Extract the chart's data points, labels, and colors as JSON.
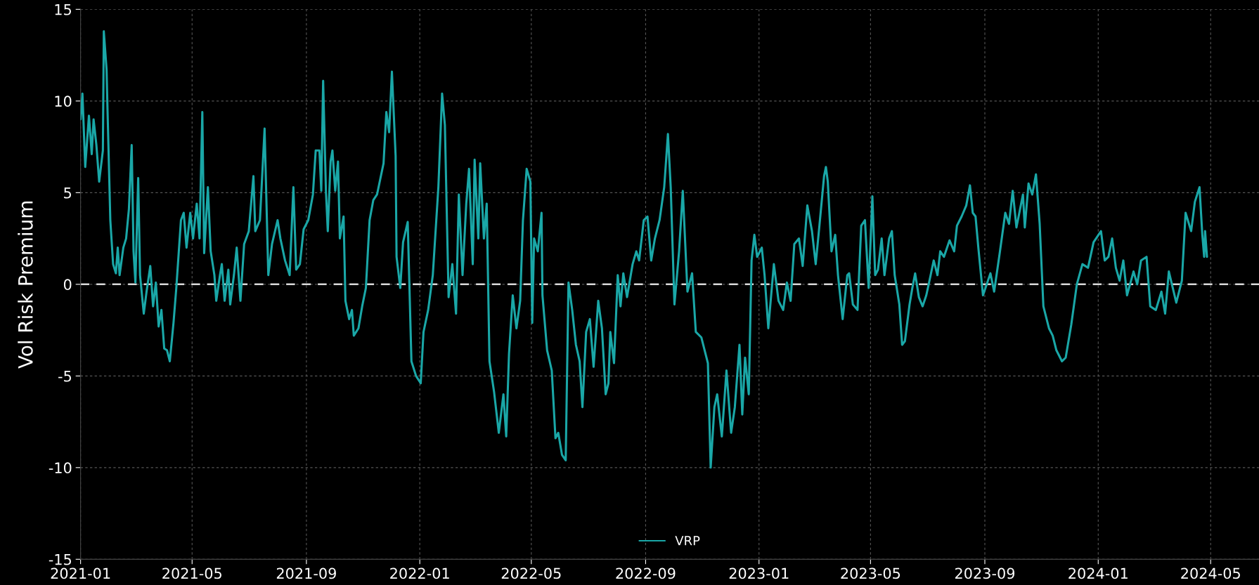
{
  "chart_data": {
    "type": "line",
    "ylabel": "Vol Risk Premium",
    "grid": true,
    "legend": "bottom",
    "marker": "none",
    "line_style": "solid",
    "xlim": [
      "2021-01-01",
      "2024-06-22"
    ],
    "xticks": [
      {
        "value": "2021-01-01",
        "label": "2021-01"
      },
      {
        "value": "2021-05-01",
        "label": "2021-05"
      },
      {
        "value": "2021-09-01",
        "label": "2021-09"
      },
      {
        "value": "2022-01-01",
        "label": "2022-01"
      },
      {
        "value": "2022-05-01",
        "label": "2022-05"
      },
      {
        "value": "2022-09-01",
        "label": "2022-09"
      },
      {
        "value": "2023-01-01",
        "label": "2023-01"
      },
      {
        "value": "2023-05-01",
        "label": "2023-05"
      },
      {
        "value": "2023-09-01",
        "label": "2023-09"
      },
      {
        "value": "2024-01-01",
        "label": "2024-01"
      },
      {
        "value": "2024-05-01",
        "label": "2024-05"
      }
    ],
    "ylim": [
      -15,
      15
    ],
    "yticks": [
      -15,
      -10,
      -5,
      0,
      5,
      10,
      15
    ],
    "ref_lines": [
      {
        "axis": "y",
        "value": 0,
        "label": null,
        "color": "#d9d9d9",
        "line_style": "dashed"
      }
    ],
    "series": [
      {
        "name": "VRP",
        "color": "#1aa7a7",
        "x": [
          "2021-01-01",
          "2021-01-03",
          "2021-01-06",
          "2021-01-10",
          "2021-01-13",
          "2021-01-15",
          "2021-01-18",
          "2021-01-21",
          "2021-01-25",
          "2021-01-26",
          "2021-01-29",
          "2021-01-30",
          "2021-02-02",
          "2021-02-05",
          "2021-02-08",
          "2021-02-10",
          "2021-02-12",
          "2021-02-16",
          "2021-02-19",
          "2021-02-22",
          "2021-02-25",
          "2021-02-27",
          "2021-03-01",
          "2021-03-04",
          "2021-03-06",
          "2021-03-10",
          "2021-03-13",
          "2021-03-17",
          "2021-03-20",
          "2021-03-23",
          "2021-03-26",
          "2021-03-29",
          "2021-04-01",
          "2021-04-04",
          "2021-04-07",
          "2021-04-11",
          "2021-04-14",
          "2021-04-19",
          "2021-04-22",
          "2021-04-25",
          "2021-04-29",
          "2021-05-02",
          "2021-05-06",
          "2021-05-09",
          "2021-05-12",
          "2021-05-14",
          "2021-05-18",
          "2021-05-21",
          "2021-05-25",
          "2021-05-27",
          "2021-05-31",
          "2021-06-02",
          "2021-06-05",
          "2021-06-09",
          "2021-06-11",
          "2021-06-15",
          "2021-06-18",
          "2021-06-22",
          "2021-06-26",
          "2021-07-01",
          "2021-07-06",
          "2021-07-08",
          "2021-07-13",
          "2021-07-18",
          "2021-07-22",
          "2021-07-26",
          "2021-08-01",
          "2021-08-04",
          "2021-08-09",
          "2021-08-14",
          "2021-08-18",
          "2021-08-21",
          "2021-08-25",
          "2021-08-29",
          "2021-09-03",
          "2021-09-08",
          "2021-09-11",
          "2021-09-15",
          "2021-09-17",
          "2021-09-19",
          "2021-09-22",
          "2021-09-24",
          "2021-09-27",
          "2021-09-29",
          "2021-10-02",
          "2021-10-05",
          "2021-10-07",
          "2021-10-11",
          "2021-10-13",
          "2021-10-17",
          "2021-10-20",
          "2021-10-22",
          "2021-10-27",
          "2021-10-31",
          "2021-11-04",
          "2021-11-08",
          "2021-11-12",
          "2021-11-16",
          "2021-11-23",
          "2021-11-26",
          "2021-11-29",
          "2021-12-02",
          "2021-12-06",
          "2021-12-07",
          "2021-12-11",
          "2021-12-14",
          "2021-12-19",
          "2021-12-23",
          "2021-12-28",
          "2022-01-02",
          "2022-01-05",
          "2022-01-10",
          "2022-01-15",
          "2022-01-21",
          "2022-01-25",
          "2022-01-28",
          "2022-02-01",
          "2022-02-05",
          "2022-02-09",
          "2022-02-12",
          "2022-02-16",
          "2022-02-20",
          "2022-02-23",
          "2022-02-27",
          "2022-03-01",
          "2022-03-05",
          "2022-03-07",
          "2022-03-11",
          "2022-03-14",
          "2022-03-17",
          "2022-03-22",
          "2022-03-27",
          "2022-04-01",
          "2022-04-04",
          "2022-04-07",
          "2022-04-11",
          "2022-04-15",
          "2022-04-19",
          "2022-04-22",
          "2022-04-26",
          "2022-04-30",
          "2022-05-02",
          "2022-05-04",
          "2022-05-08",
          "2022-05-12",
          "2022-05-13",
          "2022-05-18",
          "2022-05-23",
          "2022-05-27",
          "2022-05-30",
          "2022-06-03",
          "2022-06-07",
          "2022-06-10",
          "2022-06-14",
          "2022-06-18",
          "2022-06-22",
          "2022-06-25",
          "2022-06-29",
          "2022-07-03",
          "2022-07-07",
          "2022-07-12",
          "2022-07-16",
          "2022-07-20",
          "2022-07-23",
          "2022-07-25",
          "2022-07-29",
          "2022-08-02",
          "2022-08-05",
          "2022-08-08",
          "2022-08-12",
          "2022-08-18",
          "2022-08-22",
          "2022-08-25",
          "2022-08-30",
          "2022-09-03",
          "2022-09-07",
          "2022-09-11",
          "2022-09-16",
          "2022-09-21",
          "2022-09-25",
          "2022-09-28",
          "2022-10-02",
          "2022-10-07",
          "2022-10-11",
          "2022-10-16",
          "2022-10-21",
          "2022-10-25",
          "2022-10-31",
          "2022-11-07",
          "2022-11-10",
          "2022-11-14",
          "2022-11-17",
          "2022-11-22",
          "2022-11-27",
          "2022-12-02",
          "2022-12-06",
          "2022-12-11",
          "2022-12-14",
          "2022-12-17",
          "2022-12-21",
          "2022-12-24",
          "2022-12-27",
          "2022-12-30",
          "2023-01-04",
          "2023-01-07",
          "2023-01-11",
          "2023-01-17",
          "2023-01-22",
          "2023-01-27",
          "2023-01-31",
          "2023-02-04",
          "2023-02-08",
          "2023-02-13",
          "2023-02-17",
          "2023-02-22",
          "2023-02-27",
          "2023-03-03",
          "2023-03-07",
          "2023-03-12",
          "2023-03-14",
          "2023-03-16",
          "2023-03-20",
          "2023-03-24",
          "2023-03-27",
          "2023-04-01",
          "2023-04-06",
          "2023-04-08",
          "2023-04-12",
          "2023-04-17",
          "2023-04-21",
          "2023-04-25",
          "2023-04-29",
          "2023-05-03",
          "2023-05-06",
          "2023-05-09",
          "2023-05-13",
          "2023-05-16",
          "2023-05-21",
          "2023-05-24",
          "2023-05-27",
          "2023-06-01",
          "2023-06-04",
          "2023-06-07",
          "2023-06-12",
          "2023-06-15",
          "2023-06-18",
          "2023-06-22",
          "2023-06-26",
          "2023-06-30",
          "2023-07-03",
          "2023-07-08",
          "2023-07-12",
          "2023-07-15",
          "2023-07-19",
          "2023-07-25",
          "2023-07-30",
          "2023-08-02",
          "2023-08-07",
          "2023-08-12",
          "2023-08-16",
          "2023-08-19",
          "2023-08-22",
          "2023-08-25",
          "2023-08-30",
          "2023-09-07",
          "2023-09-11",
          "2023-09-17",
          "2023-09-23",
          "2023-09-27",
          "2023-10-01",
          "2023-10-05",
          "2023-10-12",
          "2023-10-14",
          "2023-10-18",
          "2023-10-22",
          "2023-10-26",
          "2023-10-30",
          "2023-11-03",
          "2023-11-09",
          "2023-11-13",
          "2023-11-17",
          "2023-11-23",
          "2023-11-27",
          "2023-12-03",
          "2023-12-09",
          "2023-12-15",
          "2023-12-21",
          "2023-12-27",
          "2024-01-04",
          "2024-01-08",
          "2024-01-12",
          "2024-01-16",
          "2024-01-20",
          "2024-01-24",
          "2024-01-28",
          "2024-02-01",
          "2024-02-08",
          "2024-02-12",
          "2024-02-16",
          "2024-02-22",
          "2024-02-26",
          "2024-03-03",
          "2024-03-09",
          "2024-03-13",
          "2024-03-17",
          "2024-03-25",
          "2024-03-31",
          "2024-04-04",
          "2024-04-10",
          "2024-04-14",
          "2024-04-19",
          "2024-04-22",
          "2024-04-24",
          "2024-04-25",
          "2024-04-27"
        ],
        "values": [
          9.0,
          10.4,
          6.4,
          9.2,
          7.1,
          9.0,
          7.6,
          5.6,
          7.3,
          13.8,
          11.7,
          9.5,
          3.5,
          1.1,
          0.6,
          2.0,
          0.5,
          2.0,
          2.5,
          4.1,
          7.6,
          1.8,
          0.1,
          5.8,
          0.5,
          -1.6,
          -0.4,
          1.0,
          -1.2,
          0.1,
          -2.3,
          -1.4,
          -3.5,
          -3.6,
          -4.2,
          -2.1,
          -0.2,
          3.5,
          3.9,
          2.0,
          3.9,
          2.5,
          4.4,
          2.5,
          9.4,
          1.7,
          5.3,
          1.8,
          0.5,
          -0.9,
          0.5,
          1.1,
          -0.9,
          0.8,
          -1.1,
          0.5,
          2.0,
          -0.9,
          2.2,
          2.9,
          5.9,
          2.9,
          3.5,
          8.5,
          0.5,
          2.2,
          3.5,
          2.5,
          1.3,
          0.5,
          5.3,
          0.8,
          1.1,
          3.0,
          3.5,
          4.9,
          7.3,
          7.3,
          5.1,
          11.1,
          5.1,
          2.9,
          6.7,
          7.3,
          5.1,
          6.7,
          2.5,
          3.7,
          -0.9,
          -1.9,
          -1.4,
          -2.8,
          -2.4,
          -1.2,
          -0.2,
          3.5,
          4.6,
          4.9,
          6.6,
          9.4,
          8.3,
          11.6,
          7.0,
          1.5,
          -0.2,
          2.3,
          3.4,
          -4.2,
          -5.0,
          -5.4,
          -2.6,
          -1.4,
          0.5,
          5.3,
          10.4,
          8.7,
          -0.7,
          1.1,
          -1.6,
          4.9,
          0.5,
          4.4,
          6.3,
          1.1,
          6.8,
          2.5,
          6.6,
          2.5,
          4.4,
          -4.2,
          -5.9,
          -8.1,
          -6.0,
          -8.3,
          -3.8,
          -0.6,
          -2.4,
          -0.9,
          3.5,
          6.3,
          5.6,
          -2.1,
          2.5,
          1.8,
          3.9,
          -0.6,
          -3.6,
          -4.7,
          -8.4,
          -8.1,
          -9.3,
          -9.6,
          0.1,
          -1.4,
          -3.3,
          -4.2,
          -6.7,
          -2.6,
          -1.9,
          -4.5,
          -0.9,
          -2.4,
          -6.0,
          -5.4,
          -2.6,
          -4.3,
          0.5,
          -1.2,
          0.6,
          -0.7,
          1.1,
          1.8,
          1.3,
          3.5,
          3.7,
          1.3,
          2.5,
          3.5,
          5.3,
          8.2,
          5.3,
          -1.1,
          1.8,
          5.1,
          -0.4,
          0.6,
          -2.6,
          -2.9,
          -4.3,
          -10.0,
          -6.7,
          -6.0,
          -8.3,
          -4.7,
          -8.1,
          -6.7,
          -3.3,
          -7.1,
          -4.0,
          -6.0,
          1.3,
          2.7,
          1.5,
          2.0,
          0.5,
          -2.4,
          1.1,
          -0.9,
          -1.4,
          0.1,
          -0.9,
          2.2,
          2.5,
          1.0,
          4.3,
          2.9,
          1.1,
          3.2,
          5.9,
          6.4,
          5.6,
          1.8,
          2.7,
          0.5,
          -1.9,
          0.5,
          0.6,
          -1.1,
          -1.4,
          3.2,
          3.5,
          -0.2,
          4.8,
          0.5,
          0.8,
          2.5,
          0.5,
          2.5,
          2.9,
          0.5,
          -1.1,
          -3.3,
          -3.1,
          -1.1,
          -0.2,
          0.6,
          -0.7,
          -1.2,
          -0.6,
          0.1,
          1.3,
          0.5,
          1.8,
          1.5,
          2.4,
          1.8,
          3.2,
          3.7,
          4.3,
          5.4,
          3.9,
          3.7,
          2.0,
          -0.6,
          0.6,
          -0.4,
          1.7,
          3.9,
          3.3,
          5.1,
          3.1,
          4.9,
          3.1,
          5.5,
          4.9,
          6.0,
          3.3,
          -1.2,
          -2.4,
          -2.8,
          -3.6,
          -4.2,
          -4.0,
          -2.2,
          0.0,
          1.1,
          0.9,
          2.3,
          2.9,
          1.3,
          1.5,
          2.5,
          0.9,
          0.2,
          1.3,
          -0.6,
          0.7,
          0.0,
          1.3,
          1.5,
          -1.2,
          -1.4,
          -0.4,
          -1.6,
          0.7,
          -1.0,
          0.2,
          3.9,
          2.9,
          4.5,
          5.3,
          2.7,
          1.5,
          2.9,
          1.5
        ]
      }
    ]
  }
}
